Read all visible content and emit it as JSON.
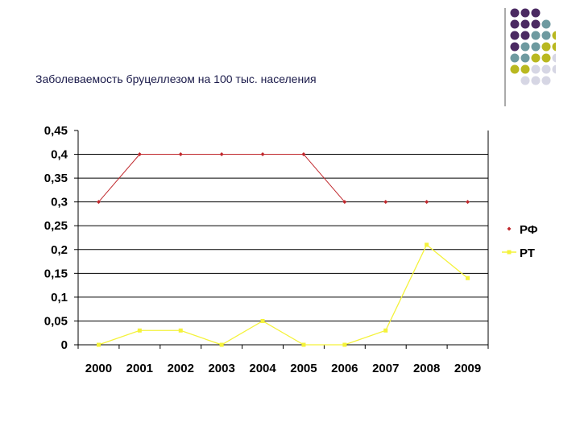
{
  "slide": {
    "title": "Заболеваемость бруцеллезом на 100 тыс. населения"
  },
  "decor": {
    "colors": [
      "#4b2a62",
      "#6e9aa0",
      "#b9b820",
      "#d6d6e4"
    ]
  },
  "chart_data": {
    "type": "line",
    "title": "Заболеваемость бруцеллезом на 100 тыс. населения",
    "xlabel": "",
    "ylabel": "",
    "categories": [
      "2000",
      "2001",
      "2002",
      "2003",
      "2004",
      "2005",
      "2006",
      "2007",
      "2008",
      "2009"
    ],
    "ylim": [
      0,
      0.45
    ],
    "yticks": [
      "0,45",
      "0,4",
      "0,35",
      "0,3",
      "0,25",
      "0,2",
      "0,15",
      "0,1",
      "0,05",
      "0"
    ],
    "grid": true,
    "legend_position": "right",
    "series": [
      {
        "name": "РФ",
        "color": "#c0282d",
        "values": [
          0.3,
          0.4,
          0.4,
          0.4,
          0.4,
          0.4,
          0.3,
          0.3,
          0.3,
          0.3
        ],
        "line_until_index": 6
      },
      {
        "name": "РТ",
        "color": "#f4f23a",
        "values": [
          0,
          0.03,
          0.03,
          0,
          0.05,
          0,
          0,
          0.03,
          0.21,
          0.14
        ],
        "line_until_index": 9
      }
    ]
  }
}
